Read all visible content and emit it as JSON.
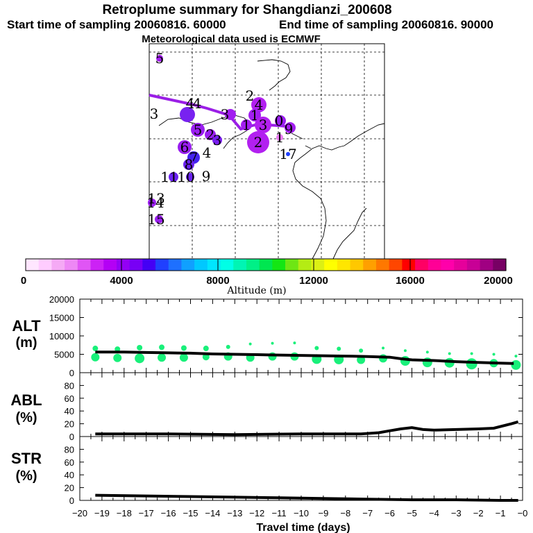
{
  "header": {
    "title": "Retroplume summary for Shangdianzi_200608",
    "start_label": "Start time of sampling 20060816. 60000",
    "end_label": "End time of sampling 20060816. 90000",
    "met_label": "Meteorological data used is ECMWF"
  },
  "colors": {
    "plume_line": "#9a1ee6",
    "alt_dots": "#19f07a",
    "line": "#000000",
    "colorbar": [
      "#ffe6ff",
      "#ffccff",
      "#f5aaf5",
      "#ee88f5",
      "#e055f5",
      "#cc22f5",
      "#b400f5",
      "#9400f5",
      "#7800f5",
      "#4400f5",
      "#2040ff",
      "#1e70ff",
      "#10a0ff",
      "#00c8ff",
      "#00e6ff",
      "#00ffe6",
      "#00f5b4",
      "#00f087",
      "#00e650",
      "#14e614",
      "#6ee614",
      "#b4ec14",
      "#dcf014",
      "#ffff00",
      "#ffe600",
      "#ffc800",
      "#ffa000",
      "#ff7800",
      "#ff4600",
      "#ff0000",
      "#ff0064",
      "#ff0096",
      "#ff00aa",
      "#e6009b",
      "#c80096",
      "#a00082",
      "#780064"
    ]
  },
  "map": {
    "points": [
      {
        "label": "5",
        "color": "#a21ef0",
        "size": 5
      },
      {
        "label": "3",
        "color": "#a21ef0",
        "size": 0
      },
      {
        "label": "4",
        "color": "#7822f0",
        "size": 11
      },
      {
        "label": "4",
        "color": "#9a1ef0",
        "size": 0
      },
      {
        "label": "3",
        "color": "#a21ef0",
        "size": 8
      },
      {
        "label": "2",
        "color": "#b220f0",
        "size": 0
      },
      {
        "label": "4",
        "color": "#b220f0",
        "size": 11
      },
      {
        "label": "1",
        "color": "#a21ef0",
        "size": 9
      },
      {
        "label": "1",
        "color": "#a21ef0",
        "size": 8
      },
      {
        "label": "3",
        "color": "#b220f0",
        "size": 12
      },
      {
        "label": "0",
        "color": "#9a1ef0",
        "size": 8
      },
      {
        "label": "9",
        "color": "#a21ef0",
        "size": 8
      },
      {
        "label": "2",
        "color": "#b220f0",
        "size": 16
      },
      {
        "label": "1",
        "color": "#e87af0",
        "size": 5
      },
      {
        "label": "5",
        "color": "#9a1ef0",
        "size": 10
      },
      {
        "label": "2",
        "color": "#9a1ef0",
        "size": 8
      },
      {
        "label": "3",
        "color": "#7a1ef0",
        "size": 7
      },
      {
        "label": "6",
        "color": "#9a1ef0",
        "size": 10
      },
      {
        "label": "4",
        "color": "#9a1ef0",
        "size": 0
      },
      {
        "label": "7",
        "color": "#4422f0",
        "size": 9
      },
      {
        "label": "8",
        "color": "#6a22f0",
        "size": 8
      },
      {
        "label": "17",
        "color": "#2040ff",
        "size": 3
      },
      {
        "label": "11",
        "color": "#6a22f0",
        "size": 7
      },
      {
        "label": "10",
        "color": "#6a22f0",
        "size": 6
      },
      {
        "label": "9",
        "color": "#6a22f0",
        "size": 0
      },
      {
        "label": "13",
        "color": "#9a1ef0",
        "size": 6
      },
      {
        "label": "14",
        "color": "#9a1ef0",
        "size": 0
      },
      {
        "label": "15",
        "color": "#9a1ef0",
        "size": 6
      }
    ]
  },
  "colorbar": {
    "tick_labels": [
      "0",
      "4000",
      "8000",
      "12000",
      "16000",
      "20000"
    ],
    "axis_title": "Altitude  (m)"
  },
  "panels": {
    "alt_label": "ALT",
    "alt_unit": "(m)",
    "abl_label": "ABL",
    "abl_unit": "(%)",
    "str_label": "STR",
    "str_unit": "(%)",
    "x_title": "Travel time (days)"
  },
  "chart_data": [
    {
      "type": "scatter",
      "title": "ALT",
      "xlabel": "Travel time (days)",
      "ylabel": "ALT (m)",
      "xlim": [
        -20,
        0
      ],
      "ylim": [
        0,
        20000
      ],
      "y_ticks": [
        "0",
        "5000",
        "10000",
        "15000",
        "20000"
      ],
      "x_ticks": [
        "−20",
        "−19",
        "−18",
        "−17",
        "−16",
        "−15",
        "−14",
        "−13",
        "−12",
        "−11",
        "−10",
        "−9",
        "−8",
        "−7",
        "−6",
        "−5",
        "−4",
        "−3",
        "−2",
        "−1",
        "−0"
      ],
      "line_x": [
        -19.3,
        -18,
        -17,
        -16,
        -15,
        -14,
        -13,
        -12,
        -11,
        -10,
        -9,
        -8,
        -7,
        -6,
        -5.5,
        -5,
        -4,
        -3,
        -2,
        -1,
        -0.4
      ],
      "line_y": [
        5600,
        5600,
        5500,
        5400,
        5300,
        5100,
        5000,
        4900,
        4800,
        4700,
        4600,
        4500,
        4400,
        4200,
        3800,
        3500,
        3300,
        3000,
        2800,
        2600,
        2500
      ],
      "dots": {
        "x": [
          -19.3,
          -19.3,
          -18.3,
          -18.3,
          -17.3,
          -17.3,
          -16.3,
          -16.3,
          -15.3,
          -15.3,
          -14.3,
          -14.3,
          -13.3,
          -13.3,
          -12.3,
          -12.3,
          -11.3,
          -11.3,
          -10.3,
          -10.3,
          -9.3,
          -9.3,
          -8.3,
          -8.3,
          -7.3,
          -7.3,
          -6.3,
          -6.3,
          -5.3,
          -5.3,
          -4.3,
          -4.3,
          -3.3,
          -3.3,
          -2.3,
          -2.3,
          -1.3,
          -1.3,
          -0.3,
          -0.3
        ],
        "y": [
          4200,
          6600,
          4000,
          6400,
          3900,
          6800,
          4100,
          6900,
          4100,
          6700,
          4300,
          6600,
          4400,
          7000,
          4100,
          7800,
          4400,
          8000,
          4400,
          8100,
          3700,
          6700,
          3600,
          6500,
          3500,
          6000,
          3900,
          6700,
          3200,
          6000,
          2800,
          5600,
          2700,
          5200,
          2400,
          5200,
          2600,
          5000,
          2100,
          4500
        ],
        "r": [
          6,
          4,
          6,
          4,
          7,
          4,
          6,
          4,
          6,
          4,
          5,
          4,
          6,
          3,
          6,
          2,
          6,
          2,
          6,
          2,
          7,
          3,
          7,
          3,
          6,
          3,
          6,
          2,
          7,
          2,
          7,
          2,
          7,
          2,
          8,
          2,
          6,
          2,
          7,
          2
        ]
      }
    },
    {
      "type": "line",
      "title": "ABL",
      "ylabel": "ABL (%)",
      "xlim": [
        -20,
        0
      ],
      "ylim": [
        0,
        100
      ],
      "y_ticks": [
        "0",
        "20",
        "40",
        "60",
        "80"
      ],
      "x": [
        -19.3,
        -16,
        -13,
        -10,
        -7.3,
        -6.5,
        -6,
        -5.5,
        -5,
        -4.5,
        -4,
        -3,
        -2,
        -1.3,
        -0.5,
        -0.2
      ],
      "y": [
        4,
        4,
        3,
        4,
        4,
        6,
        9,
        12,
        14,
        11,
        10,
        11,
        12,
        13,
        20,
        23
      ]
    },
    {
      "type": "line",
      "title": "STR",
      "ylabel": "STR (%)",
      "xlim": [
        -20,
        0
      ],
      "ylim": [
        0,
        100
      ],
      "y_ticks": [
        "0",
        "20",
        "40",
        "60",
        "80"
      ],
      "x": [
        -19.3,
        -17,
        -15,
        -13,
        -11,
        -9,
        -7,
        -5,
        -3,
        -1,
        -0.2
      ],
      "y": [
        8,
        7,
        6,
        5,
        4,
        3,
        2,
        1,
        1,
        0,
        0
      ]
    }
  ]
}
